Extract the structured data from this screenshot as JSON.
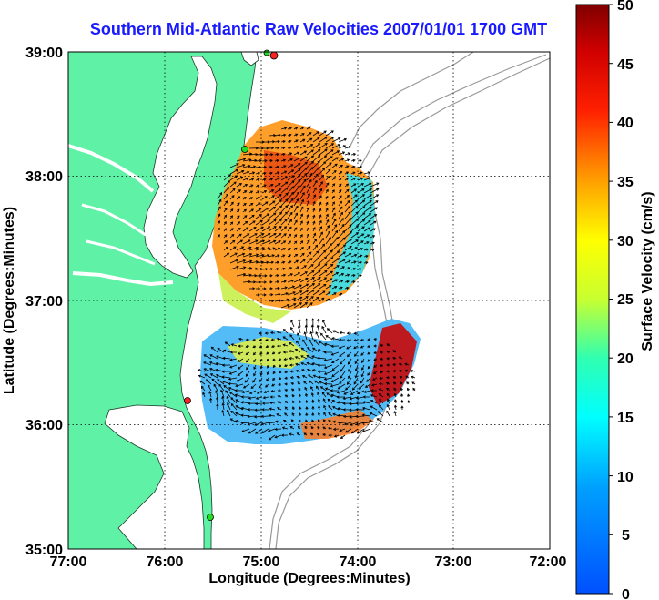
{
  "title": "Southern Mid-Atlantic Raw Velocities 2007/01/01 1700 GMT",
  "axes": {
    "xlabel": "Longitude (Degrees:Minutes)",
    "ylabel": "Latitude (Degrees:Minutes)",
    "xticks": [
      "77:00",
      "76:00",
      "75:00",
      "74:00",
      "73:00",
      "72:00"
    ],
    "yticks": [
      "39:00",
      "38:00",
      "37:00",
      "36:00",
      "35:00"
    ]
  },
  "colorbar": {
    "label": "Surface Velocity (cm/s)",
    "ticks": [
      "50",
      "45",
      "40",
      "35",
      "30",
      "25",
      "20",
      "15",
      "10",
      "5",
      "0"
    ],
    "min": 0,
    "max": 50
  },
  "colors": {
    "land": "#5ff2a6",
    "title": "#1a1aff",
    "station_red": "#ff2020",
    "station_green": "#22dd22"
  }
}
